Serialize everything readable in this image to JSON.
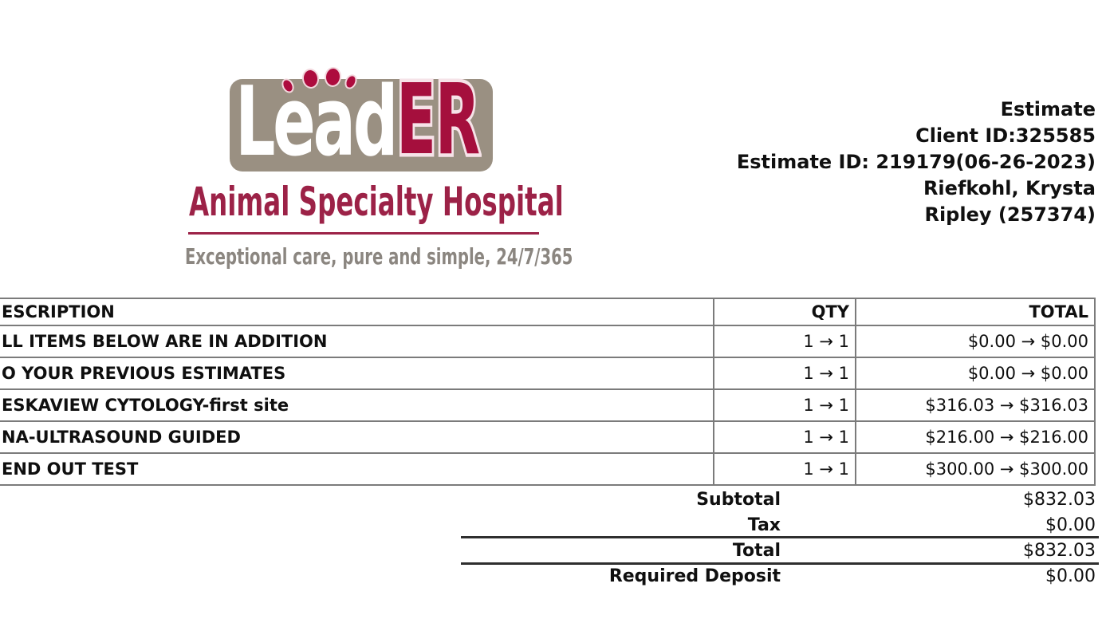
{
  "logo": {
    "wordmark_lead": "Lead",
    "wordmark_er": "ER",
    "subtitle": "Animal Specialty Hospital",
    "tagline": "Exceptional care, pure and simple, 24/7/365",
    "colors": {
      "plate": "#9a9082",
      "crimson": "#a50f3d",
      "maroon": "#9c2247",
      "tagline_gray": "#8b8680"
    }
  },
  "estimate_info": {
    "title": "Estimate",
    "client_id_line": "Client ID:325585",
    "estimate_id_line": "Estimate ID: 219179(06-26-2023)",
    "client_name": "Riefkohl, Krysta",
    "patient_line": "Ripley (257374)"
  },
  "table": {
    "headers": {
      "description": "ESCRIPTION",
      "qty": "QTY",
      "total": "TOTAL"
    },
    "rows": [
      {
        "description": "LL ITEMS BELOW ARE IN ADDITION",
        "qty": "1 → 1",
        "total": "$0.00 → $0.00"
      },
      {
        "description": "O YOUR PREVIOUS ESTIMATES",
        "qty": "1 → 1",
        "total": "$0.00 → $0.00"
      },
      {
        "description": "ESKAVIEW CYTOLOGY-first site",
        "qty": "1 → 1",
        "total": "$316.03 → $316.03"
      },
      {
        "description": "NA-ULTRASOUND GUIDED",
        "qty": "1 → 1",
        "total": "$216.00 → $216.00"
      },
      {
        "description": "END OUT TEST",
        "qty": "1 → 1",
        "total": "$300.00 → $300.00"
      }
    ]
  },
  "totals": [
    {
      "label": "Subtotal",
      "value": "$832.03"
    },
    {
      "label": "Tax",
      "value": "$0.00"
    },
    {
      "label": "Total",
      "value": "$832.03"
    },
    {
      "label": "Required Deposit",
      "value": "$0.00"
    }
  ]
}
